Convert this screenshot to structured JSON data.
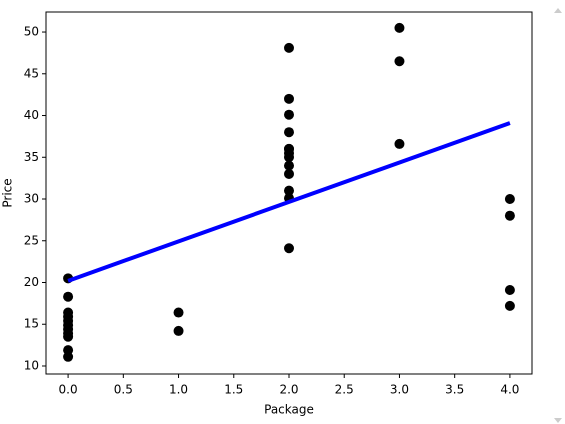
{
  "chart_data": {
    "type": "scatter",
    "xlabel": "Package",
    "ylabel": "Price",
    "xlim": [
      -0.2,
      4.2
    ],
    "ylim": [
      9.04,
      52.4
    ],
    "xticks": [
      {
        "value": 0,
        "label": "0.0"
      },
      0.5,
      {
        "value": 1,
        "label": "1.0"
      },
      1.5,
      {
        "value": 2,
        "label": "2.0"
      },
      2.5,
      {
        "value": 3,
        "label": "3.0"
      },
      3.5,
      {
        "value": 4,
        "label": "4.0"
      }
    ],
    "yticks": [
      10,
      15,
      20,
      25,
      30,
      35,
      40,
      45,
      50
    ],
    "points": {
      "color": "#000000",
      "x": [
        0,
        0,
        0,
        0,
        0,
        0,
        0,
        0,
        0,
        0,
        0,
        1,
        1,
        2,
        2,
        2,
        2,
        2,
        2,
        2,
        2,
        2,
        2,
        2,
        2,
        2,
        3,
        3,
        3,
        4,
        4,
        4,
        4
      ],
      "y": [
        20.5,
        18.3,
        16.4,
        15.9,
        15.4,
        14.9,
        14.4,
        13.9,
        13.5,
        11.9,
        11.1,
        16.4,
        14.2,
        48.1,
        42.0,
        40.1,
        38.0,
        36.0,
        35.5,
        35.0,
        34.0,
        33.0,
        31.0,
        30.1,
        24.1,
        36.0,
        50.5,
        46.5,
        36.6,
        30.0,
        28.0,
        19.1,
        17.2
      ]
    },
    "fit_line": {
      "color": "#0000ff",
      "x": [
        0,
        4
      ],
      "y": [
        20.2,
        39.1
      ]
    }
  }
}
